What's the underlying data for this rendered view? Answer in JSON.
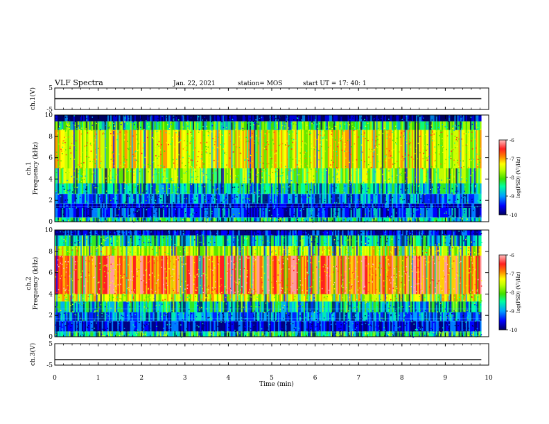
{
  "header": {
    "title": "VLF Spectra",
    "date": "Jan. 22, 2021",
    "station": "station= MOS",
    "start": "start  UT =    17: 40: 1"
  },
  "chart_data": [
    {
      "type": "line",
      "panel": "ch1-voltage",
      "ylabel": "ch.1(V)",
      "ylim": [
        -5,
        5
      ],
      "yticks": [
        "5",
        "-5"
      ],
      "series": [
        {
          "values_note_x_min": [
            0,
            9.83
          ],
          "level": 0.0
        }
      ]
    },
    {
      "type": "heatmap",
      "panel": "ch1-spectrogram",
      "ylabel": "ch.1\nFrequency (kHz)",
      "ylabel_line1": "ch.1",
      "ylabel_line2": "Frequency (kHz)",
      "ylim": [
        0,
        10
      ],
      "yticks": [
        "0",
        "2",
        "4",
        "6",
        "8",
        "10"
      ],
      "x_extent_min": [
        0,
        9.83
      ],
      "bands_kHz_log10PSD": [
        {
          "from": 0.0,
          "to": 0.4,
          "level": -8.5
        },
        {
          "from": 0.4,
          "to": 1.3,
          "level": -9.3
        },
        {
          "from": 1.3,
          "to": 1.7,
          "level": -9.6
        },
        {
          "from": 1.7,
          "to": 2.6,
          "level": -9.2
        },
        {
          "from": 2.6,
          "to": 3.6,
          "level": -8.7
        },
        {
          "from": 3.6,
          "to": 5.0,
          "level": -8.0
        },
        {
          "from": 5.0,
          "to": 8.6,
          "level": -7.5
        },
        {
          "from": 8.6,
          "to": 9.4,
          "level": -8.3
        },
        {
          "from": 9.4,
          "to": 10.0,
          "level": -9.7
        }
      ],
      "colorbar": {
        "label": "log(PSD) (V²/Hz)",
        "ticks": [
          "-6",
          "-7",
          "-8",
          "-9",
          "-10"
        ],
        "range": [
          -10,
          -6
        ]
      }
    },
    {
      "type": "heatmap",
      "panel": "ch2-spectrogram",
      "ylabel": "ch.2\nFrequency (kHz)",
      "ylabel_line1": "ch.2",
      "ylabel_line2": "Frequency (kHz)",
      "ylim": [
        0,
        10
      ],
      "yticks": [
        "0",
        "2",
        "4",
        "6",
        "8",
        "10"
      ],
      "x_extent_min": [
        0,
        9.83
      ],
      "bands_kHz_log10PSD": [
        {
          "from": 0.0,
          "to": 0.5,
          "level": -8.4
        },
        {
          "from": 0.5,
          "to": 1.5,
          "level": -9.5
        },
        {
          "from": 1.5,
          "to": 2.3,
          "level": -9.1
        },
        {
          "from": 2.3,
          "to": 3.3,
          "level": -8.6
        },
        {
          "from": 3.3,
          "to": 4.0,
          "level": -7.6
        },
        {
          "from": 4.0,
          "to": 7.6,
          "level": -6.8
        },
        {
          "from": 7.6,
          "to": 8.5,
          "level": -7.7
        },
        {
          "from": 8.5,
          "to": 9.5,
          "level": -8.6
        },
        {
          "from": 9.5,
          "to": 10.0,
          "level": -9.6
        }
      ],
      "colorbar": {
        "label": "log(PSD) (V²/Hz)",
        "ticks": [
          "-6",
          "-7",
          "-8",
          "-9",
          "-10"
        ],
        "range": [
          -10,
          -6
        ]
      }
    },
    {
      "type": "line",
      "panel": "ch3-voltage",
      "ylabel": "ch.3(V)",
      "ylim": [
        -5,
        5
      ],
      "yticks": [
        "5",
        "-5"
      ],
      "series": [
        {
          "values_note_x_min": [
            0,
            9.83
          ],
          "level": -2.5
        }
      ]
    }
  ],
  "xaxis": {
    "label": "Time  (min)",
    "ticks": [
      "0",
      "1",
      "2",
      "3",
      "4",
      "5",
      "6",
      "7",
      "8",
      "9",
      "10"
    ],
    "xlim": [
      0,
      10
    ]
  },
  "colors": {
    "scale": [
      "#000060",
      "#0000ff",
      "#00a0ff",
      "#00ffa0",
      "#40e000",
      "#c0ff00",
      "#ffff00",
      "#ff8000",
      "#ff2020",
      "#ffc0c0"
    ]
  }
}
